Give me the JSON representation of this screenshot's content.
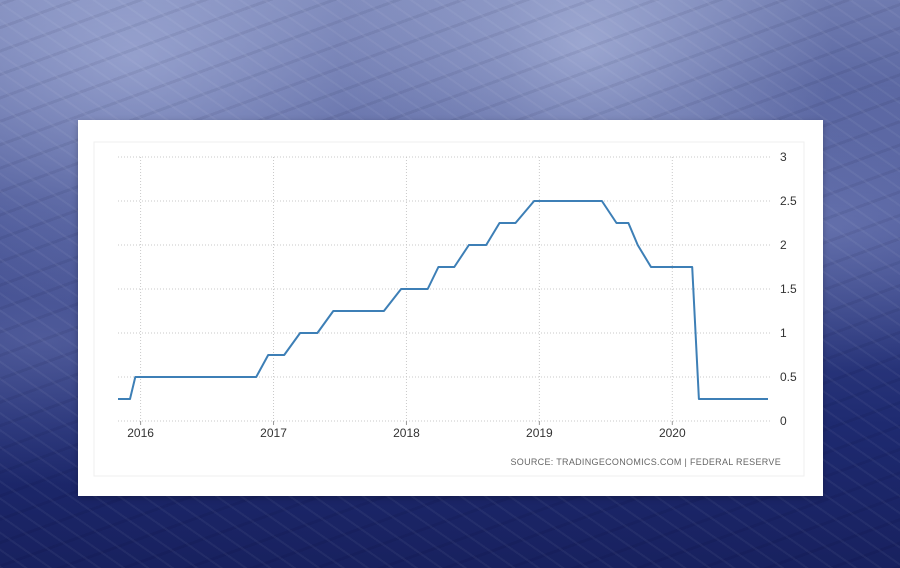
{
  "colors": {
    "line": "#3d7fb6",
    "grid": "#c9c9c9",
    "card_bg": "#ffffff",
    "page_bg": "#1f2a6b"
  },
  "source_text": "SOURCE: TRADINGECONOMICS.COM  |  FEDERAL RESERVE",
  "chart_data": {
    "type": "line",
    "title": "",
    "xlabel": "",
    "ylabel": "",
    "ylim": [
      0,
      3
    ],
    "xlim": [
      2015.83,
      2020.75
    ],
    "y_ticks": [
      0,
      0.5,
      1,
      1.5,
      2,
      2.5,
      3
    ],
    "y_tick_labels": [
      "0",
      "0.5",
      "1",
      "1.5",
      "2",
      "2.5",
      "3"
    ],
    "x_ticks": [
      2016,
      2017,
      2018,
      2019,
      2020
    ],
    "x_tick_labels": [
      "2016",
      "2017",
      "2018",
      "2019",
      "2020"
    ],
    "grid": true,
    "y_axis_side": "right",
    "series": [
      {
        "x": [
          2015.83,
          2015.92,
          2015.96,
          2016.33,
          2016.87,
          2016.96,
          2017.08,
          2017.2,
          2017.33,
          2017.45,
          2017.83,
          2017.96,
          2018.16,
          2018.24,
          2018.36,
          2018.47,
          2018.6,
          2018.7,
          2018.82,
          2018.96,
          2019.2,
          2019.47,
          2019.58,
          2019.67,
          2019.74,
          2019.84,
          2020.15,
          2020.2,
          2020.5,
          2020.72
        ],
        "y": [
          0.25,
          0.25,
          0.5,
          0.5,
          0.5,
          0.75,
          0.75,
          1.0,
          1.0,
          1.25,
          1.25,
          1.5,
          1.5,
          1.75,
          1.75,
          2.0,
          2.0,
          2.25,
          2.25,
          2.5,
          2.5,
          2.5,
          2.25,
          2.25,
          2.0,
          1.75,
          1.75,
          0.25,
          0.25,
          0.25
        ]
      }
    ]
  }
}
